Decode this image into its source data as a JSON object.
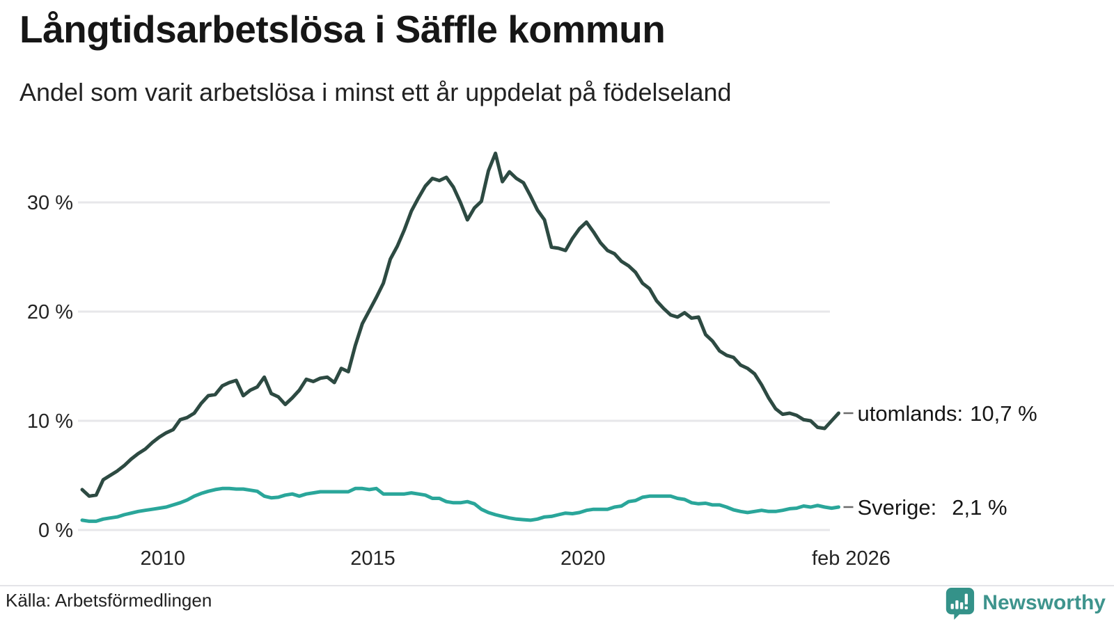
{
  "header": {
    "title": "Långtidsarbetslösa i Säffle kommun",
    "subtitle": "Andel som varit arbetslösa i minst ett år uppdelat på födelseland"
  },
  "footer": {
    "source_label": "Källa: Arbetsförmedlingen",
    "brand": "Newsworthy"
  },
  "colors": {
    "utomlands_line": "#2d4a42",
    "sverige_line": "#2aa69a",
    "gridline": "#e7e7ea",
    "tick_text": "#242424",
    "label_text": "#161616",
    "leader_dash": "#6b6b6b",
    "brand_teal": "#3e948d",
    "logo_bubble": "#349289"
  },
  "chart_data": {
    "type": "line",
    "title": "Långtidsarbetslösa i Säffle kommun",
    "subtitle": "Andel som varit arbetslösa i minst ett år uppdelat på födelseland",
    "unit": "%",
    "x_start": "2008-02",
    "x_end": "2026-02",
    "interval_months": 2,
    "total_months": 216,
    "grid": true,
    "legend_position": "right-end-labels",
    "ylim": [
      0,
      36
    ],
    "y_ticks": [
      {
        "label": "0 %",
        "value": 0
      },
      {
        "label": "10 %",
        "value": 10
      },
      {
        "label": "20 %",
        "value": 20
      },
      {
        "label": "30 %",
        "value": 30
      }
    ],
    "x_ticks": [
      {
        "label": "2010",
        "month": 23
      },
      {
        "label": "2015",
        "month": 83
      },
      {
        "label": "2020",
        "month": 143
      },
      {
        "label": "feb 2026",
        "month": 216
      }
    ],
    "series": [
      {
        "name": "utomlands",
        "label": "utomlands:",
        "value_label": "10,7 %",
        "last_value": 10.7,
        "color": "#2d4a42",
        "values": [
          3.7,
          3.1,
          3.2,
          4.6,
          5.0,
          5.4,
          5.9,
          6.5,
          7.0,
          7.4,
          8.0,
          8.5,
          8.9,
          9.2,
          10.1,
          10.3,
          10.7,
          11.6,
          12.3,
          12.4,
          13.2,
          13.5,
          13.7,
          12.3,
          12.8,
          13.1,
          14.0,
          12.5,
          12.2,
          11.5,
          12.1,
          12.8,
          13.8,
          13.6,
          13.9,
          14.0,
          13.5,
          14.8,
          14.5,
          16.9,
          18.9,
          20.1,
          21.3,
          22.6,
          24.8,
          26.0,
          27.5,
          29.2,
          30.4,
          31.5,
          32.2,
          32.0,
          32.3,
          31.4,
          30.0,
          28.4,
          29.5,
          30.1,
          32.9,
          34.5,
          31.9,
          32.8,
          32.2,
          31.8,
          30.6,
          29.3,
          28.4,
          25.9,
          25.8,
          25.6,
          26.7,
          27.6,
          28.2,
          27.3,
          26.3,
          25.6,
          25.3,
          24.6,
          24.2,
          23.6,
          22.6,
          22.1,
          21.0,
          20.3,
          19.7,
          19.5,
          19.9,
          19.4,
          19.5,
          17.9,
          17.3,
          16.4,
          16.0,
          15.8,
          15.1,
          14.8,
          14.3,
          13.3,
          12.1,
          11.1,
          10.6,
          10.7,
          10.5,
          10.1,
          10.0,
          9.4,
          9.3,
          10.0,
          10.7
        ]
      },
      {
        "name": "Sverige",
        "label": "Sverige:",
        "value_label": "2,1 %",
        "last_value": 2.1,
        "color": "#2aa69a",
        "values": [
          0.9,
          0.8,
          0.8,
          1.0,
          1.1,
          1.2,
          1.4,
          1.55,
          1.7,
          1.8,
          1.9,
          2.0,
          2.1,
          2.3,
          2.5,
          2.75,
          3.1,
          3.35,
          3.55,
          3.7,
          3.8,
          3.8,
          3.75,
          3.75,
          3.65,
          3.55,
          3.1,
          2.95,
          3.0,
          3.2,
          3.3,
          3.1,
          3.3,
          3.4,
          3.5,
          3.5,
          3.5,
          3.5,
          3.5,
          3.8,
          3.8,
          3.7,
          3.8,
          3.3,
          3.3,
          3.3,
          3.3,
          3.4,
          3.3,
          3.2,
          2.9,
          2.9,
          2.6,
          2.5,
          2.5,
          2.6,
          2.4,
          1.9,
          1.6,
          1.4,
          1.25,
          1.1,
          1.0,
          0.95,
          0.9,
          1.0,
          1.2,
          1.25,
          1.4,
          1.55,
          1.5,
          1.6,
          1.8,
          1.9,
          1.9,
          1.9,
          2.1,
          2.2,
          2.6,
          2.7,
          3.0,
          3.1,
          3.1,
          3.1,
          3.1,
          2.9,
          2.8,
          2.5,
          2.4,
          2.45,
          2.3,
          2.3,
          2.1,
          1.85,
          1.7,
          1.6,
          1.7,
          1.8,
          1.7,
          1.7,
          1.8,
          1.95,
          2.0,
          2.2,
          2.1,
          2.25,
          2.1,
          2.0,
          2.1
        ]
      }
    ]
  }
}
